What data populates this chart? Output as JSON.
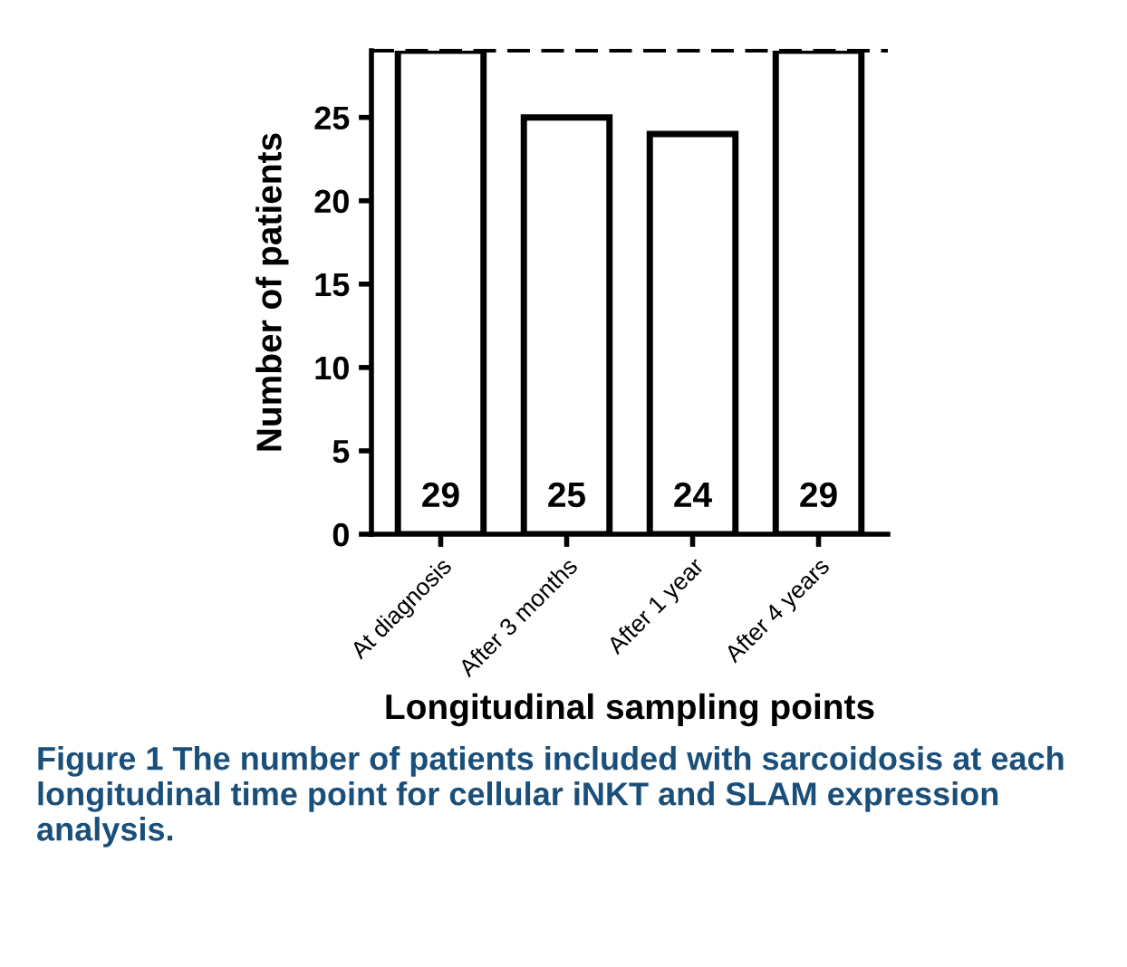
{
  "chart_data": {
    "type": "bar",
    "xlabel": "Longitudinal sampling points",
    "ylabel": "Number of patients",
    "categories": [
      "At diagnosis",
      "After 3 months",
      "After 1 year",
      "After 4 years"
    ],
    "values": [
      29,
      25,
      24,
      29
    ],
    "color": "#ffffff",
    "data_labels": true,
    "ylim": [
      0,
      29
    ],
    "yticks": [
      0,
      5,
      10,
      15,
      20,
      25
    ],
    "grid": false,
    "ref_lines": [
      {
        "axis": "y",
        "value": 29,
        "line_style": "dashed",
        "color": "#000000"
      }
    ],
    "annotations": [
      "Figure 1 The number of patients included with sarcoidosis at each longitudinal time point for cellular iNKT and SLAM expression analysis."
    ]
  }
}
